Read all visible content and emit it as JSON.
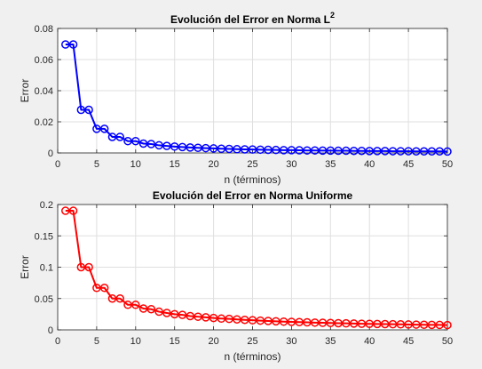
{
  "chart_data": [
    {
      "type": "line",
      "title": "Evolución del Error en Norma L",
      "title_superscript": "2",
      "xlabel": "n (términos)",
      "ylabel": "Error",
      "xlim": [
        0,
        50
      ],
      "ylim": [
        0,
        0.08
      ],
      "xticks": [
        0,
        5,
        10,
        15,
        20,
        25,
        30,
        35,
        40,
        45,
        50
      ],
      "yticks": [
        0,
        0.02,
        0.04,
        0.06,
        0.08
      ],
      "xtick_labels": [
        "0",
        "5",
        "10",
        "15",
        "20",
        "25",
        "30",
        "35",
        "40",
        "45",
        "50"
      ],
      "ytick_labels": [
        "0",
        "0.02",
        "0.04",
        "0.06",
        "0.08"
      ],
      "grid": true,
      "marker": "circle",
      "color": "#0000ff",
      "series": [
        {
          "x": [
            1,
            2,
            3,
            4,
            5,
            6,
            7,
            8,
            9,
            10,
            11,
            12,
            13,
            14,
            15,
            16,
            17,
            18,
            19,
            20,
            21,
            22,
            23,
            24,
            25,
            26,
            27,
            28,
            29,
            30,
            31,
            32,
            33,
            34,
            35,
            36,
            37,
            38,
            39,
            40,
            41,
            42,
            43,
            44,
            45,
            46,
            47,
            48,
            49,
            50
          ],
          "values": [
            0.0697,
            0.0697,
            0.0277,
            0.0277,
            0.0155,
            0.0155,
            0.0103,
            0.0103,
            0.0076,
            0.0076,
            0.006,
            0.0057,
            0.0049,
            0.0045,
            0.0041,
            0.0038,
            0.0035,
            0.0033,
            0.0031,
            0.0029,
            0.0027,
            0.0026,
            0.0024,
            0.0023,
            0.0022,
            0.0021,
            0.002,
            0.0019,
            0.0018,
            0.0018,
            0.0017,
            0.0016,
            0.0016,
            0.0015,
            0.0015,
            0.0014,
            0.0014,
            0.0013,
            0.0013,
            0.0012,
            0.0012,
            0.0012,
            0.0011,
            0.0011,
            0.0011,
            0.001,
            0.001,
            0.001,
            0.001,
            0.0009
          ]
        }
      ]
    },
    {
      "type": "line",
      "title": "Evolución del Error en Norma Uniforme",
      "xlabel": "n (términos)",
      "ylabel": "Error",
      "xlim": [
        0,
        50
      ],
      "ylim": [
        0,
        0.2
      ],
      "xticks": [
        0,
        5,
        10,
        15,
        20,
        25,
        30,
        35,
        40,
        45,
        50
      ],
      "yticks": [
        0,
        0.05,
        0.1,
        0.15,
        0.2
      ],
      "xtick_labels": [
        "0",
        "5",
        "10",
        "15",
        "20",
        "25",
        "30",
        "35",
        "40",
        "45",
        "50"
      ],
      "ytick_labels": [
        "0",
        "0.05",
        "0.1",
        "0.15",
        "0.2"
      ],
      "grid": true,
      "marker": "circle",
      "color": "#ff0000",
      "series": [
        {
          "x": [
            1,
            2,
            3,
            4,
            5,
            6,
            7,
            8,
            9,
            10,
            11,
            12,
            13,
            14,
            15,
            16,
            17,
            18,
            19,
            20,
            21,
            22,
            23,
            24,
            25,
            26,
            27,
            28,
            29,
            30,
            31,
            32,
            33,
            34,
            35,
            36,
            37,
            38,
            39,
            40,
            41,
            42,
            43,
            44,
            45,
            46,
            47,
            48,
            49,
            50
          ],
          "values": [
            0.19,
            0.19,
            0.1,
            0.1,
            0.067,
            0.067,
            0.05,
            0.05,
            0.04,
            0.04,
            0.034,
            0.033,
            0.029,
            0.027,
            0.025,
            0.024,
            0.022,
            0.021,
            0.02,
            0.019,
            0.018,
            0.0175,
            0.0167,
            0.016,
            0.0154,
            0.0148,
            0.0142,
            0.0137,
            0.0132,
            0.0128,
            0.0124,
            0.012,
            0.0116,
            0.0113,
            0.011,
            0.0107,
            0.0104,
            0.0101,
            0.0098,
            0.0096,
            0.0094,
            0.0092,
            0.009,
            0.0088,
            0.0086,
            0.0084,
            0.0082,
            0.008,
            0.0079,
            0.0077
          ]
        }
      ]
    }
  ]
}
